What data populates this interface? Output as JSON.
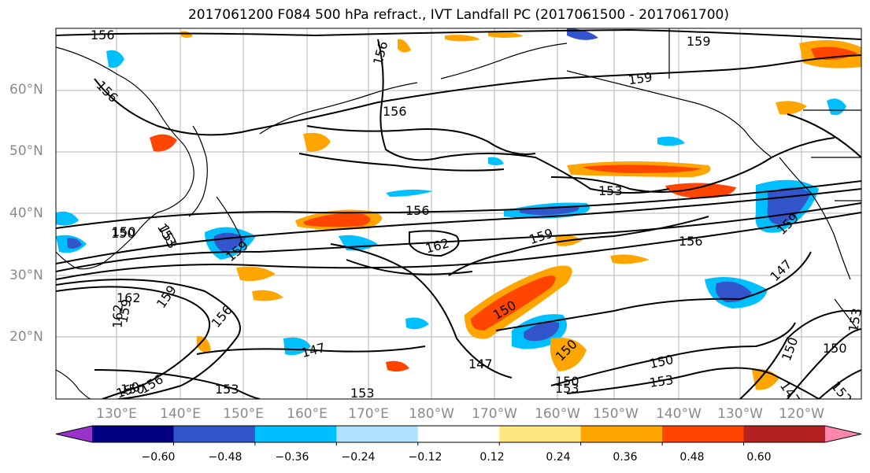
{
  "title": "2017061200 F084 500 hPa refract., IVT Landfall PC (2017061500 - 2017061700)",
  "lat_labels": [
    "60°N",
    "50°N",
    "40°N",
    "30°N",
    "20°N"
  ],
  "lon_labels": [
    "130°E",
    "140°E",
    "150°E",
    "160°E",
    "170°E",
    "180°W",
    "170°W",
    "160°W",
    "150°W",
    "140°W",
    "130°W",
    "120°W"
  ],
  "contour_labels": [
    "156",
    "156",
    "156",
    "156",
    "159",
    "159",
    "159",
    "159",
    "153",
    "156",
    "156",
    "162",
    "150",
    "153",
    "162",
    "159",
    "159",
    "156",
    "147",
    "150",
    "150",
    "147",
    "150",
    "150",
    "153",
    "150",
    "150",
    "153",
    "153",
    "153",
    "156",
    "147",
    "152",
    "147",
    "150",
    "153",
    "162",
    "159",
    "153",
    "150",
    "150"
  ],
  "colorbar": {
    "ticks": [
      "−0.60",
      "−0.48",
      "−0.36",
      "−0.24",
      "−0.12",
      "0.12",
      "0.24",
      "0.36",
      "0.48",
      "0.60"
    ],
    "colors": [
      "#9933cc",
      "#000080",
      "#3355cc",
      "#00bfff",
      "#b0e0ff",
      "#ffffff",
      "#ffe680",
      "#ffa500",
      "#ff4500",
      "#b22222",
      "#ff88aa"
    ]
  }
}
